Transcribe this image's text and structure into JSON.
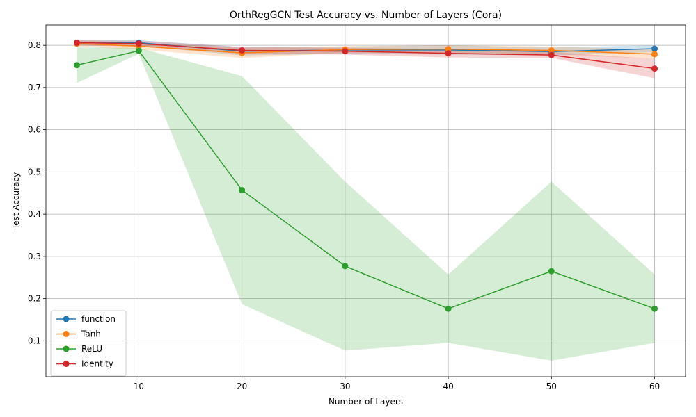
{
  "chart_data": {
    "type": "line",
    "title": "OrthRegGCN Test Accuracy vs. Number of Layers (Cora)",
    "xlabel": "Number of Layers",
    "ylabel": "Test Accuracy",
    "x": [
      4,
      10,
      20,
      30,
      40,
      50,
      60
    ],
    "xlim": [
      1,
      63
    ],
    "ylim": [
      0.015,
      0.848
    ],
    "xticks": [
      10,
      20,
      30,
      40,
      50,
      60
    ],
    "xtick_labels": [
      "10",
      "20",
      "30",
      "40",
      "50",
      "60"
    ],
    "yticks": [
      0.1,
      0.2,
      0.3,
      0.4,
      0.5,
      0.6,
      0.7,
      0.8
    ],
    "ytick_labels": [
      "0.1",
      "0.2",
      "0.3",
      "0.4",
      "0.5",
      "0.6",
      "0.7",
      "0.8"
    ],
    "grid": true,
    "legend_position": "lower-left",
    "series": [
      {
        "name": "function",
        "color": "#1f77b4",
        "values": [
          0.806,
          0.806,
          0.786,
          0.789,
          0.789,
          0.785,
          0.792
        ],
        "lower": [
          0.8,
          0.798,
          0.776,
          0.78,
          0.778,
          0.776,
          0.784
        ],
        "upper": [
          0.812,
          0.812,
          0.796,
          0.797,
          0.8,
          0.795,
          0.8
        ]
      },
      {
        "name": "Tanh",
        "color": "#ff7f0e",
        "values": [
          0.804,
          0.798,
          0.782,
          0.79,
          0.791,
          0.788,
          0.779
        ],
        "lower": [
          0.797,
          0.79,
          0.77,
          0.782,
          0.782,
          0.779,
          0.768
        ],
        "upper": [
          0.811,
          0.806,
          0.794,
          0.798,
          0.8,
          0.797,
          0.79
        ]
      },
      {
        "name": "ReLU",
        "color": "#2ca02c",
        "values": [
          0.753,
          0.787,
          0.457,
          0.277,
          0.176,
          0.265,
          0.176
        ],
        "lower": [
          0.711,
          0.78,
          0.187,
          0.077,
          0.095,
          0.053,
          0.095
        ],
        "upper": [
          0.795,
          0.794,
          0.727,
          0.477,
          0.257,
          0.477,
          0.257
        ]
      },
      {
        "name": "Identity",
        "color": "#d62728",
        "values": [
          0.806,
          0.804,
          0.788,
          0.786,
          0.781,
          0.777,
          0.745
        ],
        "lower": [
          0.8,
          0.797,
          0.78,
          0.778,
          0.771,
          0.77,
          0.722
        ],
        "upper": [
          0.812,
          0.811,
          0.796,
          0.794,
          0.791,
          0.784,
          0.768
        ]
      }
    ]
  }
}
